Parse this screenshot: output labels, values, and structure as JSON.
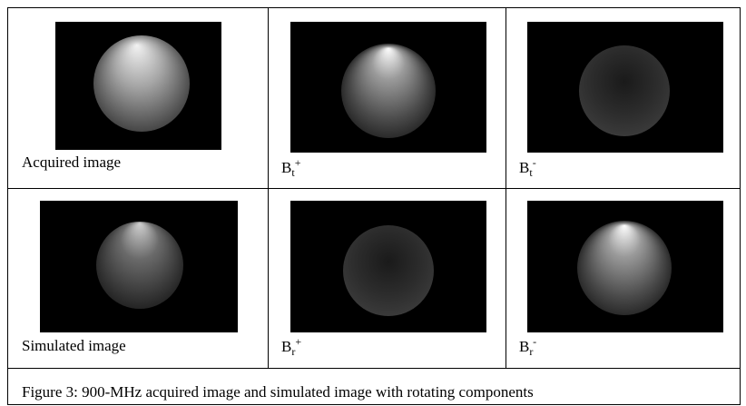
{
  "table": {
    "rows": [
      [
        {
          "caption": "Acquired image"
        },
        {
          "base": "B",
          "sub": "t",
          "sup": "+"
        },
        {
          "base": "B",
          "sub": "t",
          "sup": "-"
        }
      ],
      [
        {
          "caption": "Simulated image"
        },
        {
          "base": "B",
          "sub": "r",
          "sup": "+"
        },
        {
          "base": "B",
          "sub": "r",
          "sup": "-"
        }
      ]
    ]
  },
  "caption": "Figure 3: 900-MHz acquired image and simulated image with rotating components"
}
